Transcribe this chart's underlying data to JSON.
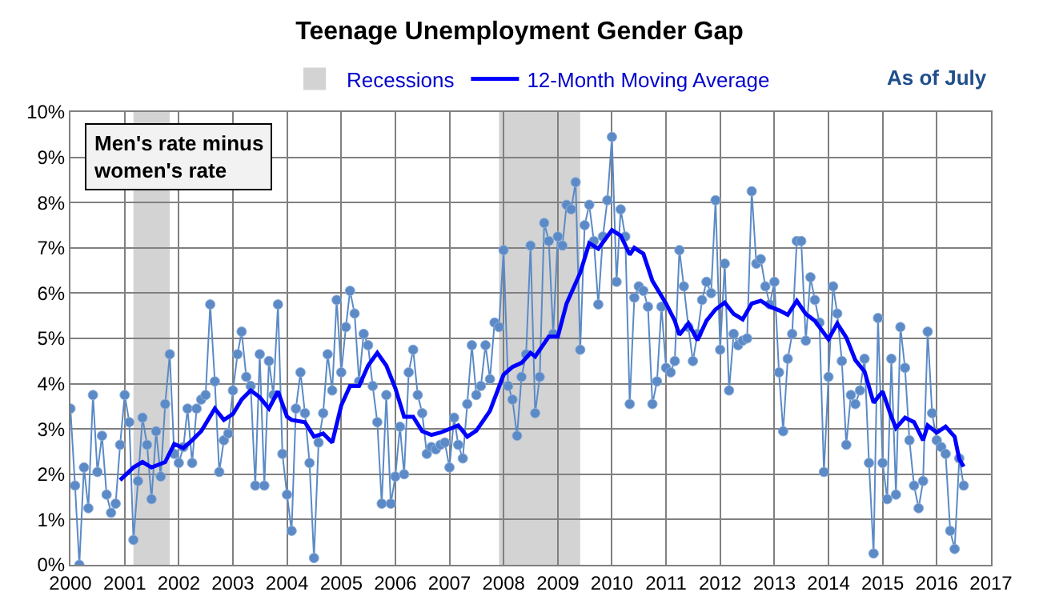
{
  "chart_data": {
    "type": "line",
    "title": "Teenage Unemployment Gender Gap",
    "annotations": [
      "Men's rate minus\nwomen's rate",
      "As of July"
    ],
    "xlim": [
      "2000",
      "2017"
    ],
    "xticks": [
      {
        "value": "2000",
        "label": "2000"
      },
      {
        "value": "2001",
        "label": "2001"
      },
      {
        "value": "2002",
        "label": "2002"
      },
      {
        "value": "2003",
        "label": "2003"
      },
      {
        "value": "2004",
        "label": "2004"
      },
      {
        "value": "2005",
        "label": "2005"
      },
      {
        "value": "2006",
        "label": "2006"
      },
      {
        "value": "2007",
        "label": "2007"
      },
      {
        "value": "2008",
        "label": "2008"
      },
      {
        "value": "2009",
        "label": "2009"
      },
      {
        "value": "2010",
        "label": "2010"
      },
      {
        "value": "2011",
        "label": "2011"
      },
      {
        "value": "2012",
        "label": "2012"
      },
      {
        "value": "2013",
        "label": "2013"
      },
      {
        "value": "2014",
        "label": "2014"
      },
      {
        "value": "2015",
        "label": "2015"
      },
      {
        "value": "2016",
        "label": "2016"
      },
      {
        "value": "2017",
        "label": "2017"
      }
    ],
    "ylim": [
      0,
      10
    ],
    "yticks": [
      {
        "value": 0,
        "label": "0%"
      },
      {
        "value": 1,
        "label": "1%"
      },
      {
        "value": 2,
        "label": "2%"
      },
      {
        "value": 3,
        "label": "3%"
      },
      {
        "value": 4,
        "label": "4%"
      },
      {
        "value": 5,
        "label": "5%"
      },
      {
        "value": 6,
        "label": "6%"
      },
      {
        "value": 7,
        "label": "7%"
      },
      {
        "value": 8,
        "label": "8%"
      },
      {
        "value": 9,
        "label": "9%"
      },
      {
        "value": 10,
        "label": "10%"
      }
    ],
    "grid": true,
    "legend": "top",
    "bands": [
      {
        "axis": "x",
        "from": "2001-03",
        "to": "2001-11",
        "label": "Recessions",
        "color": "#d3d3d3"
      },
      {
        "axis": "x",
        "from": "2007-12",
        "to": "2009-06",
        "color": "#d3d3d3"
      }
    ],
    "series": [
      {
        "color": "#5b8ac6",
        "marker": "circle",
        "x": [
          "2000-01",
          "2000-02",
          "2000-03",
          "2000-04",
          "2000-05",
          "2000-06",
          "2000-07",
          "2000-08",
          "2000-09",
          "2000-10",
          "2000-11",
          "2000-12",
          "2001-01",
          "2001-02",
          "2001-03",
          "2001-04",
          "2001-05",
          "2001-06",
          "2001-07",
          "2001-08",
          "2001-09",
          "2001-10",
          "2001-11",
          "2001-12",
          "2002-01",
          "2002-02",
          "2002-03",
          "2002-04",
          "2002-05",
          "2002-06",
          "2002-07",
          "2002-08",
          "2002-09",
          "2002-10",
          "2002-11",
          "2002-12",
          "2003-01",
          "2003-02",
          "2003-03",
          "2003-04",
          "2003-05",
          "2003-06",
          "2003-07",
          "2003-08",
          "2003-09",
          "2003-10",
          "2003-11",
          "2003-12",
          "2004-01",
          "2004-02",
          "2004-03",
          "2004-04",
          "2004-05",
          "2004-06",
          "2004-07",
          "2004-08",
          "2004-09",
          "2004-10",
          "2004-11",
          "2004-12",
          "2005-01",
          "2005-02",
          "2005-03",
          "2005-04",
          "2005-05",
          "2005-06",
          "2005-07",
          "2005-08",
          "2005-09",
          "2005-10",
          "2005-11",
          "2005-12",
          "2006-01",
          "2006-02",
          "2006-03",
          "2006-04",
          "2006-05",
          "2006-06",
          "2006-07",
          "2006-08",
          "2006-09",
          "2006-10",
          "2006-11",
          "2006-12",
          "2007-01",
          "2007-02",
          "2007-03",
          "2007-04",
          "2007-05",
          "2007-06",
          "2007-07",
          "2007-08",
          "2007-09",
          "2007-10",
          "2007-11",
          "2007-12",
          "2008-01",
          "2008-02",
          "2008-03",
          "2008-04",
          "2008-05",
          "2008-06",
          "2008-07",
          "2008-08",
          "2008-09",
          "2008-10",
          "2008-11",
          "2008-12",
          "2009-01",
          "2009-02",
          "2009-03",
          "2009-04",
          "2009-05",
          "2009-06",
          "2009-07",
          "2009-08",
          "2009-09",
          "2009-10",
          "2009-11",
          "2009-12",
          "2010-01",
          "2010-02",
          "2010-03",
          "2010-04",
          "2010-05",
          "2010-06",
          "2010-07",
          "2010-08",
          "2010-09",
          "2010-10",
          "2010-11",
          "2010-12",
          "2011-01",
          "2011-02",
          "2011-03",
          "2011-04",
          "2011-05",
          "2011-06",
          "2011-07",
          "2011-08",
          "2011-09",
          "2011-10",
          "2011-11",
          "2011-12",
          "2012-01",
          "2012-02",
          "2012-03",
          "2012-04",
          "2012-05",
          "2012-06",
          "2012-07",
          "2012-08",
          "2012-09",
          "2012-10",
          "2012-11",
          "2012-12",
          "2013-01",
          "2013-02",
          "2013-03",
          "2013-04",
          "2013-05",
          "2013-06",
          "2013-07",
          "2013-08",
          "2013-09",
          "2013-10",
          "2013-11",
          "2013-12",
          "2014-01",
          "2014-02",
          "2014-03",
          "2014-04",
          "2014-05",
          "2014-06",
          "2014-07",
          "2014-08",
          "2014-09",
          "2014-10",
          "2014-11",
          "2014-12",
          "2015-01",
          "2015-02",
          "2015-03",
          "2015-04",
          "2015-05",
          "2015-06",
          "2015-07",
          "2015-08",
          "2015-09",
          "2015-10",
          "2015-11",
          "2015-12",
          "2016-01",
          "2016-02",
          "2016-03",
          "2016-04",
          "2016-05",
          "2016-06",
          "2016-07"
        ],
        "values": [
          3.45,
          1.75,
          0,
          2.15,
          1.25,
          3.75,
          2.05,
          2.85,
          1.55,
          1.15,
          1.35,
          2.65,
          3.75,
          3.15,
          0.55,
          1.85,
          3.25,
          2.65,
          1.45,
          2.95,
          1.95,
          3.55,
          4.65,
          2.45,
          2.25,
          2.6,
          3.45,
          2.25,
          3.45,
          3.65,
          3.75,
          5.75,
          4.05,
          2.05,
          2.75,
          2.9,
          3.85,
          4.65,
          5.15,
          4.15,
          3.95,
          1.75,
          4.65,
          1.75,
          4.5,
          3.75,
          5.75,
          2.45,
          1.55,
          0.75,
          3.45,
          4.25,
          3.35,
          2.25,
          0.15,
          2.7,
          3.35,
          4.65,
          3.85,
          5.85,
          4.25,
          5.25,
          6.05,
          5.55,
          4.05,
          5.1,
          4.85,
          3.95,
          3.15,
          1.35,
          3.75,
          1.35,
          1.95,
          3.05,
          2.0,
          4.25,
          4.75,
          3.75,
          3.35,
          2.45,
          2.6,
          2.55,
          2.65,
          2.7,
          2.15,
          3.25,
          2.65,
          2.35,
          3.55,
          4.85,
          3.75,
          3.95,
          4.85,
          4.1,
          5.35,
          5.25,
          6.95,
          3.95,
          3.65,
          2.85,
          4.15,
          4.65,
          7.05,
          3.35,
          4.15,
          7.55,
          7.15,
          5.1,
          7.25,
          7.05,
          7.95,
          7.85,
          8.45,
          4.75,
          7.5,
          7.95,
          7.15,
          5.75,
          7.25,
          8.05,
          9.45,
          6.25,
          7.85,
          7.25,
          3.55,
          5.9,
          6.15,
          6.05,
          5.7,
          3.55,
          4.05,
          5.7,
          4.35,
          4.25,
          4.5,
          6.95,
          6.15,
          5.25,
          4.5,
          5.1,
          5.85,
          6.25,
          6.0,
          8.05,
          4.75,
          6.65,
          3.85,
          5.1,
          4.85,
          4.95,
          5.0,
          8.25,
          6.65,
          6.75,
          6.15,
          5.75,
          6.25,
          4.25,
          2.95,
          4.55,
          5.1,
          7.15,
          7.15,
          4.95,
          6.35,
          5.85,
          5.35,
          2.05,
          4.15,
          6.15,
          5.55,
          4.5,
          2.65,
          3.75,
          3.55,
          3.85,
          4.55,
          2.25,
          0.25,
          5.45,
          2.25,
          1.45,
          4.55,
          1.55,
          5.25,
          4.35,
          2.75,
          1.75,
          1.25,
          1.85,
          5.15,
          3.35,
          2.75,
          2.6,
          2.45,
          0.75,
          0.35,
          2.35,
          1.75
        ]
      },
      {
        "name": "12-Month Moving Average",
        "color": "#0000ff",
        "marker": "none",
        "x": [
          "2000-12",
          "2001-03",
          "2001-05",
          "2001-07",
          "2001-10",
          "2001-12",
          "2002-02",
          "2002-04",
          "2002-06",
          "2002-09",
          "2002-11",
          "2003-01",
          "2003-03",
          "2003-05",
          "2003-07",
          "2003-09",
          "2003-11",
          "2004-01",
          "2004-02",
          "2004-05",
          "2004-07",
          "2004-09",
          "2004-11",
          "2005-01",
          "2005-03",
          "2005-05",
          "2005-07",
          "2005-09",
          "2005-11",
          "2006-01",
          "2006-03",
          "2006-05",
          "2006-07",
          "2006-09",
          "2006-11",
          "2007-01",
          "2007-03",
          "2007-05",
          "2007-07",
          "2007-10",
          "2008-01",
          "2008-03",
          "2008-05",
          "2008-07",
          "2008-08",
          "2008-11",
          "2009-01",
          "2009-03",
          "2009-06",
          "2009-08",
          "2009-10",
          "2010-01",
          "2010-03",
          "2010-05",
          "2010-06",
          "2010-08",
          "2010-10",
          "2011-01",
          "2011-03",
          "2011-04",
          "2011-06",
          "2011-08",
          "2011-10",
          "2011-12",
          "2012-02",
          "2012-04",
          "2012-06",
          "2012-08",
          "2012-10",
          "2012-12",
          "2013-02",
          "2013-04",
          "2013-06",
          "2013-08",
          "2013-10",
          "2014-01",
          "2014-03",
          "2014-05",
          "2014-07",
          "2014-09",
          "2014-11",
          "2015-01",
          "2015-03",
          "2015-04",
          "2015-06",
          "2015-08",
          "2015-10",
          "2015-11",
          "2016-01",
          "2016-03",
          "2016-05",
          "2016-06",
          "2016-07"
        ],
        "values": [
          1.87,
          2.15,
          2.27,
          2.15,
          2.27,
          2.67,
          2.58,
          2.75,
          2.95,
          3.45,
          3.2,
          3.33,
          3.65,
          3.85,
          3.7,
          3.45,
          3.83,
          3.27,
          3.2,
          3.15,
          2.83,
          2.9,
          2.7,
          3.52,
          3.95,
          3.95,
          4.4,
          4.68,
          4.4,
          3.9,
          3.27,
          3.27,
          2.95,
          2.87,
          2.92,
          3.0,
          3.08,
          2.83,
          2.96,
          3.4,
          4.2,
          4.37,
          4.46,
          4.68,
          4.6,
          5.04,
          5.04,
          5.77,
          6.45,
          7.1,
          6.98,
          7.39,
          7.27,
          6.85,
          7.0,
          6.87,
          6.27,
          5.77,
          5.39,
          5.08,
          5.33,
          4.96,
          5.39,
          5.64,
          5.79,
          5.54,
          5.42,
          5.77,
          5.83,
          5.7,
          5.62,
          5.52,
          5.83,
          5.54,
          5.39,
          4.98,
          5.33,
          5.02,
          4.52,
          4.27,
          3.58,
          3.83,
          3.27,
          3.02,
          3.25,
          3.15,
          2.75,
          3.08,
          2.92,
          3.05,
          2.83,
          2.33,
          2.17
        ]
      }
    ]
  }
}
